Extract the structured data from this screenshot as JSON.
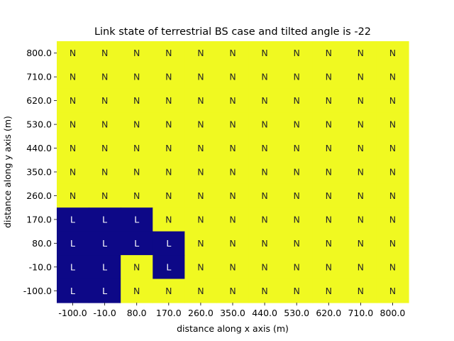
{
  "chart_data": {
    "type": "heatmap",
    "title": "Link state of terrestrial BS case and tilted angle is -22",
    "xlabel": "distance along x axis (m)",
    "ylabel": "distance along y axis (m)",
    "x_ticks": [
      "-100.0",
      "-10.0",
      "80.0",
      "170.0",
      "260.0",
      "350.0",
      "440.0",
      "530.0",
      "620.0",
      "710.0",
      "800.0"
    ],
    "y_ticks": [
      "800.0",
      "710.0",
      "620.0",
      "530.0",
      "440.0",
      "350.0",
      "260.0",
      "170.0",
      "80.0",
      "-10.0",
      "-100.0"
    ],
    "rows": [
      [
        "N",
        "N",
        "N",
        "N",
        "N",
        "N",
        "N",
        "N",
        "N",
        "N",
        "N"
      ],
      [
        "N",
        "N",
        "N",
        "N",
        "N",
        "N",
        "N",
        "N",
        "N",
        "N",
        "N"
      ],
      [
        "N",
        "N",
        "N",
        "N",
        "N",
        "N",
        "N",
        "N",
        "N",
        "N",
        "N"
      ],
      [
        "N",
        "N",
        "N",
        "N",
        "N",
        "N",
        "N",
        "N",
        "N",
        "N",
        "N"
      ],
      [
        "N",
        "N",
        "N",
        "N",
        "N",
        "N",
        "N",
        "N",
        "N",
        "N",
        "N"
      ],
      [
        "N",
        "N",
        "N",
        "N",
        "N",
        "N",
        "N",
        "N",
        "N",
        "N",
        "N"
      ],
      [
        "N",
        "N",
        "N",
        "N",
        "N",
        "N",
        "N",
        "N",
        "N",
        "N",
        "N"
      ],
      [
        "L",
        "L",
        "L",
        "N",
        "N",
        "N",
        "N",
        "N",
        "N",
        "N",
        "N"
      ],
      [
        "L",
        "L",
        "L",
        "L",
        "N",
        "N",
        "N",
        "N",
        "N",
        "N",
        "N"
      ],
      [
        "L",
        "L",
        "N",
        "L",
        "N",
        "N",
        "N",
        "N",
        "N",
        "N",
        "N"
      ],
      [
        "L",
        "L",
        "N",
        "N",
        "N",
        "N",
        "N",
        "N",
        "N",
        "N",
        "N"
      ]
    ],
    "colors": {
      "L": "#0d0887",
      "N": "#f0f921",
      "L_text": "#ffffff",
      "N_text": "#262626"
    },
    "colorbar": false,
    "grid": false
  }
}
